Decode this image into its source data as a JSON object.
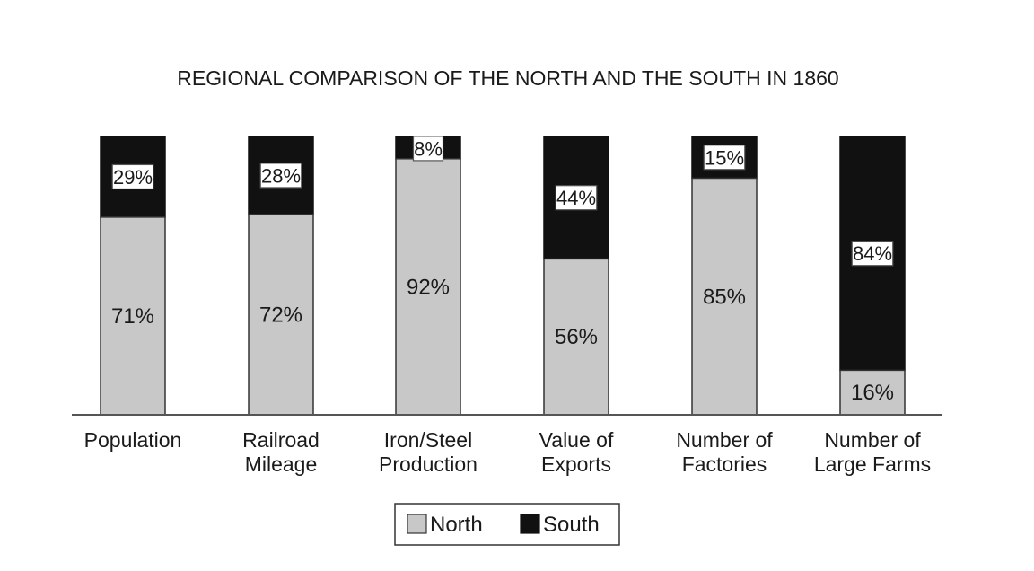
{
  "chart_data": {
    "type": "bar",
    "stacked": true,
    "title": "REGIONAL COMPARISON OF THE NORTH AND THE SOUTH IN 1860",
    "categories": [
      [
        "Population"
      ],
      [
        "Railroad",
        "Mileage"
      ],
      [
        "Iron/Steel",
        "Production"
      ],
      [
        "Value of",
        "Exports"
      ],
      [
        "Number of",
        "Factories"
      ],
      [
        "Number of",
        "Large Farms"
      ]
    ],
    "series": [
      {
        "name": "North",
        "values": [
          71,
          72,
          92,
          56,
          85,
          16
        ],
        "labels": [
          "71%",
          "72%",
          "92%",
          "56%",
          "85%",
          "16%"
        ],
        "color": "#c8c8c8"
      },
      {
        "name": "South",
        "values": [
          29,
          28,
          8,
          44,
          15,
          84
        ],
        "labels": [
          "29%",
          "28%",
          "8%",
          "44%",
          "15%",
          "84%"
        ],
        "color": "#111111"
      }
    ],
    "ylim": [
      0,
      100
    ],
    "grid": false,
    "legend": "bottom"
  }
}
